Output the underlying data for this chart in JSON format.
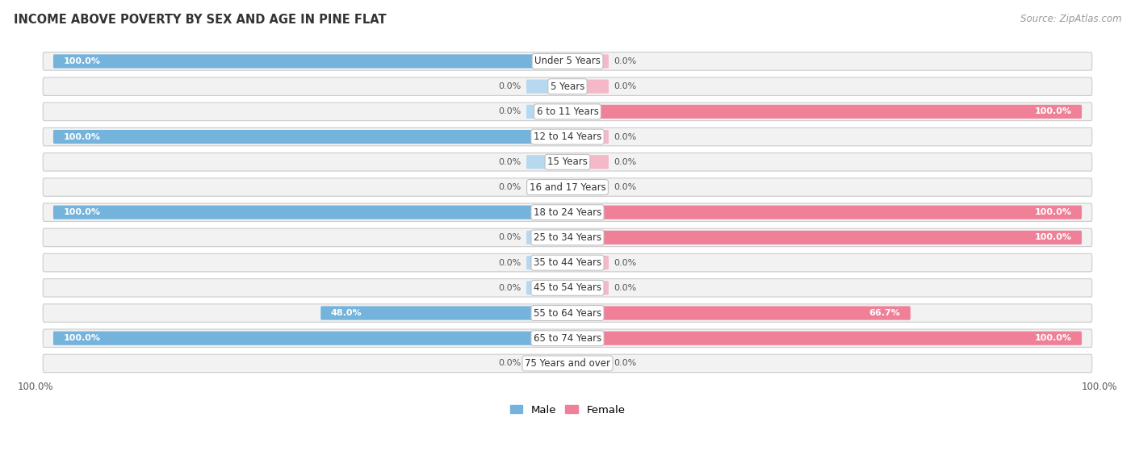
{
  "title": "INCOME ABOVE POVERTY BY SEX AND AGE IN PINE FLAT",
  "source": "Source: ZipAtlas.com",
  "categories": [
    "Under 5 Years",
    "5 Years",
    "6 to 11 Years",
    "12 to 14 Years",
    "15 Years",
    "16 and 17 Years",
    "18 to 24 Years",
    "25 to 34 Years",
    "35 to 44 Years",
    "45 to 54 Years",
    "55 to 64 Years",
    "65 to 74 Years",
    "75 Years and over"
  ],
  "male": [
    100.0,
    0.0,
    0.0,
    100.0,
    0.0,
    0.0,
    100.0,
    0.0,
    0.0,
    0.0,
    48.0,
    100.0,
    0.0
  ],
  "female": [
    0.0,
    0.0,
    100.0,
    0.0,
    0.0,
    0.0,
    100.0,
    100.0,
    0.0,
    0.0,
    66.7,
    100.0,
    0.0
  ],
  "male_color": "#74B3DC",
  "female_color": "#F08098",
  "male_color_light": "#B8D8EF",
  "female_color_light": "#F5B8C8",
  "row_bg": "#EFEFEF",
  "row_border": "#DDDDDD",
  "max_value": 100.0,
  "legend_male": "Male",
  "legend_female": "Female",
  "title_fontsize": 10.5,
  "source_fontsize": 8.5,
  "label_fontsize": 8.0,
  "cat_fontsize": 8.5
}
